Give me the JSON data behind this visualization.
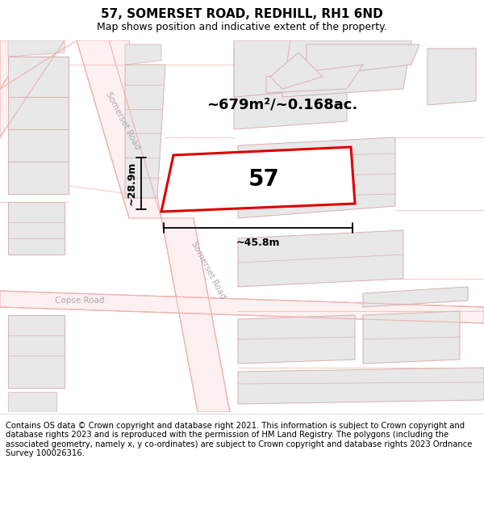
{
  "title": "57, SOMERSET ROAD, REDHILL, RH1 6ND",
  "subtitle": "Map shows position and indicative extent of the property.",
  "area_text": "~679m²/~0.168ac.",
  "number_label": "57",
  "dim_width": "~45.8m",
  "dim_height": "~28.9m",
  "footer": "Contains OS data © Crown copyright and database right 2021. This information is subject to Crown copyright and database rights 2023 and is reproduced with the permission of HM Land Registry. The polygons (including the associated geometry, namely x, y co-ordinates) are subject to Crown copyright and database rights 2023 Ordnance Survey 100026316.",
  "map_bg": "#ffffff",
  "road_line_color": "#f0b0b0",
  "building_face": "#e8e8e8",
  "building_edge": "#d8b0b0",
  "highlight_color": "#dd0000",
  "road_label_color": "#aaaaaa",
  "title_fontsize": 11,
  "subtitle_fontsize": 9,
  "number_fontsize": 20,
  "footer_fontsize": 7.2
}
